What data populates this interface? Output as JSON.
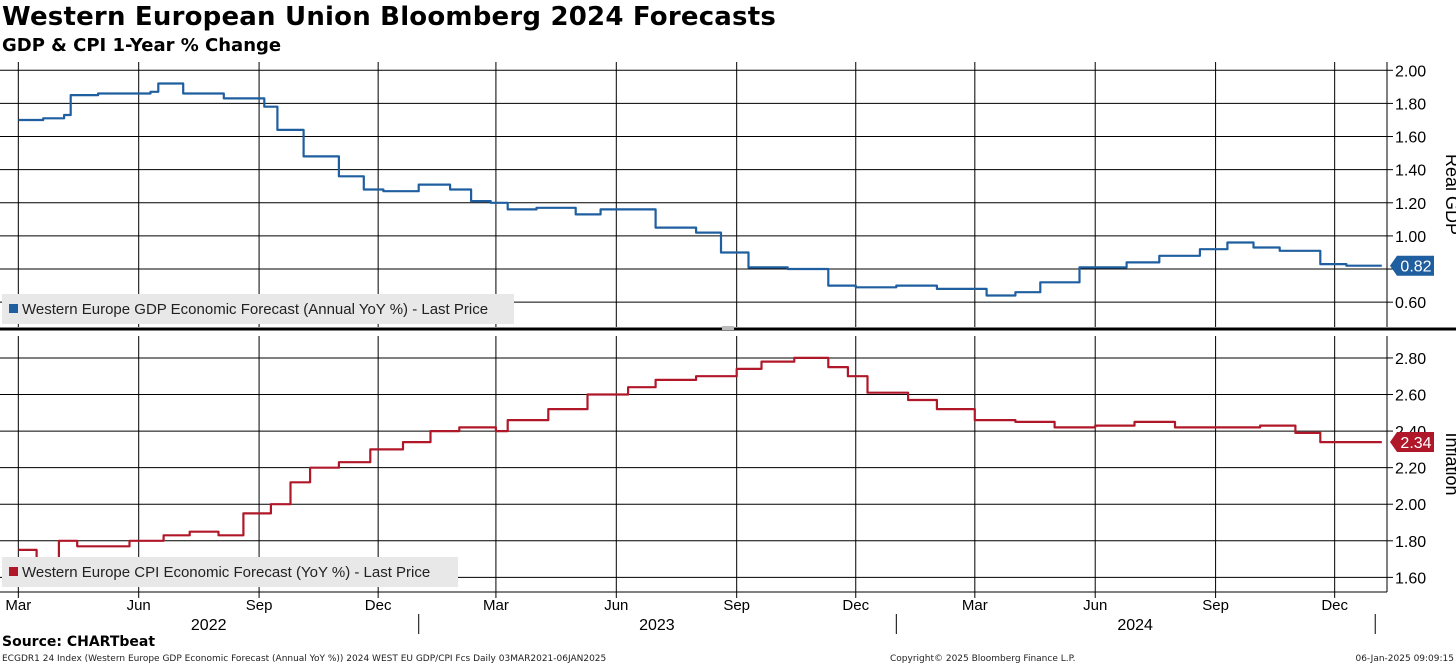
{
  "title": "Western European Union Bloomberg 2024 Forecasts",
  "subtitle": "GDP & CPI 1-Year % Change",
  "source": "Source: CHARTbeat",
  "footer": {
    "left": "ECGDR1 24 Index (Western Europe GDP Economic Forecast (Annual YoY %)) 2024 WEST EU GDP/CPI Fcs  Daily 03MAR2021-06JAN2025",
    "center": "Copyright© 2025 Bloomberg Finance L.P.",
    "right": "06-Jan-2025 09:09:15"
  },
  "colors": {
    "gdp": "#1f5fa0",
    "cpi": "#b0182a",
    "grid": "#000000",
    "legend_bg": "#e8e8e8"
  },
  "chart_data": [
    {
      "type": "line",
      "name": "gdp_panel",
      "ylabel": "Real GDP",
      "ylim": [
        0.45,
        2.05
      ],
      "yticks": [
        0.6,
        0.8,
        1.0,
        1.2,
        1.4,
        1.6,
        1.8,
        2.0
      ],
      "ytick_labels": [
        "0.60",
        "0.80",
        "1.00",
        "1.20",
        "1.40",
        "1.60",
        "1.80",
        "2.00"
      ],
      "legend": "Western Europe GDP Economic Forecast (Annual YoY %) - Last Price",
      "last_value_label": "0.82",
      "series": [
        {
          "name": "Western Europe GDP Economic Forecast (Annual YoY %) - Last Price",
          "x": [
            "2022-03-01",
            "2022-03-20",
            "2022-04-05",
            "2022-04-10",
            "2022-05-01",
            "2022-06-10",
            "2022-06-16",
            "2022-07-05",
            "2022-08-05",
            "2022-09-05",
            "2022-09-15",
            "2022-10-05",
            "2022-11-01",
            "2022-11-20",
            "2022-12-05",
            "2023-01-01",
            "2023-01-25",
            "2023-02-10",
            "2023-02-25",
            "2023-03-10",
            "2023-04-01",
            "2023-05-01",
            "2023-05-20",
            "2023-06-15",
            "2023-07-01",
            "2023-08-01",
            "2023-08-20",
            "2023-09-10",
            "2023-10-10",
            "2023-11-10",
            "2023-12-01",
            "2024-01-01",
            "2024-02-01",
            "2024-03-10",
            "2024-04-01",
            "2024-04-20",
            "2024-05-20",
            "2024-06-25",
            "2024-07-20",
            "2024-08-20",
            "2024-09-10",
            "2024-09-30",
            "2024-10-20",
            "2024-11-20",
            "2024-12-10",
            "2025-01-06"
          ],
          "values": [
            1.7,
            1.71,
            1.73,
            1.85,
            1.86,
            1.87,
            1.92,
            1.86,
            1.83,
            1.78,
            1.64,
            1.48,
            1.36,
            1.28,
            1.27,
            1.31,
            1.28,
            1.21,
            1.2,
            1.16,
            1.17,
            1.13,
            1.16,
            1.16,
            1.05,
            1.02,
            0.9,
            0.81,
            0.8,
            0.7,
            0.69,
            0.7,
            0.68,
            0.64,
            0.66,
            0.72,
            0.81,
            0.84,
            0.88,
            0.92,
            0.96,
            0.93,
            0.91,
            0.83,
            0.82,
            0.82
          ]
        }
      ]
    },
    {
      "type": "line",
      "name": "cpi_panel",
      "ylabel": "Inflation",
      "ylim": [
        1.52,
        2.92
      ],
      "yticks": [
        1.6,
        1.8,
        2.0,
        2.2,
        2.4,
        2.6,
        2.8
      ],
      "ytick_labels": [
        "1.60",
        "1.80",
        "2.00",
        "2.20",
        "2.40",
        "2.60",
        "2.80"
      ],
      "legend": "Western Europe CPI Economic Forecast (YoY %) - Last Price",
      "last_value_label": "2.34",
      "series": [
        {
          "name": "Western Europe CPI Economic Forecast (YoY %) - Last Price",
          "x": [
            "2022-03-01",
            "2022-03-15",
            "2022-04-01",
            "2022-04-15",
            "2022-05-10",
            "2022-05-25",
            "2022-06-20",
            "2022-07-10",
            "2022-08-01",
            "2022-08-20",
            "2022-09-10",
            "2022-09-25",
            "2022-10-10",
            "2022-11-01",
            "2022-11-25",
            "2022-12-20",
            "2023-01-10",
            "2023-02-01",
            "2023-03-01",
            "2023-03-10",
            "2023-04-10",
            "2023-05-10",
            "2023-06-10",
            "2023-07-01",
            "2023-08-01",
            "2023-09-01",
            "2023-09-20",
            "2023-10-15",
            "2023-11-10",
            "2023-11-25",
            "2023-12-10",
            "2024-01-10",
            "2024-02-01",
            "2024-03-01",
            "2024-04-01",
            "2024-05-01",
            "2024-06-01",
            "2024-07-01",
            "2024-08-01",
            "2024-09-10",
            "2024-10-05",
            "2024-11-01",
            "2024-11-20",
            "2024-12-20",
            "2025-01-06"
          ],
          "values": [
            1.75,
            1.7,
            1.8,
            1.77,
            1.77,
            1.8,
            1.83,
            1.85,
            1.83,
            1.95,
            2.0,
            2.12,
            2.2,
            2.23,
            2.3,
            2.34,
            2.4,
            2.42,
            2.4,
            2.46,
            2.52,
            2.6,
            2.64,
            2.68,
            2.7,
            2.74,
            2.78,
            2.8,
            2.75,
            2.7,
            2.61,
            2.57,
            2.52,
            2.46,
            2.45,
            2.42,
            2.43,
            2.45,
            2.42,
            2.42,
            2.43,
            2.39,
            2.34,
            2.34,
            2.34
          ]
        }
      ]
    }
  ],
  "x_axis": {
    "start": "2022-02-15",
    "end": "2025-01-10",
    "month_labels": [
      {
        "date": "2022-03-01",
        "label": "Mar"
      },
      {
        "date": "2022-06-01",
        "label": "Jun"
      },
      {
        "date": "2022-09-01",
        "label": "Sep"
      },
      {
        "date": "2022-12-01",
        "label": "Dec"
      },
      {
        "date": "2023-03-01",
        "label": "Mar"
      },
      {
        "date": "2023-06-01",
        "label": "Jun"
      },
      {
        "date": "2023-09-01",
        "label": "Sep"
      },
      {
        "date": "2023-12-01",
        "label": "Dec"
      },
      {
        "date": "2024-03-01",
        "label": "Mar"
      },
      {
        "date": "2024-06-01",
        "label": "Jun"
      },
      {
        "date": "2024-09-01",
        "label": "Sep"
      },
      {
        "date": "2024-12-01",
        "label": "Dec"
      }
    ],
    "year_labels": [
      {
        "start": "2022-01-01",
        "end": "2022-12-31",
        "label": "2022"
      },
      {
        "start": "2023-01-01",
        "end": "2023-12-31",
        "label": "2023"
      },
      {
        "start": "2024-01-01",
        "end": "2024-12-31",
        "label": "2024"
      }
    ]
  }
}
